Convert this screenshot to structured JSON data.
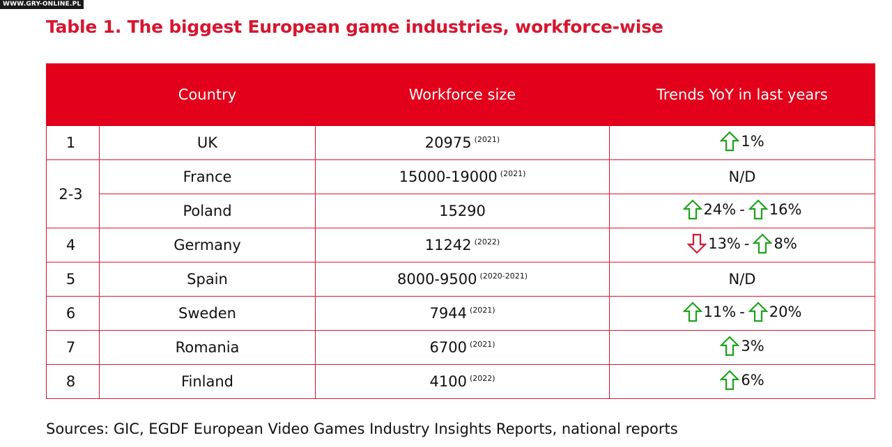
{
  "watermark": "WWW.GRY-ONLINE.PL",
  "title": "Table 1. The biggest European game industries, workforce-wise",
  "table": {
    "headers": {
      "rank": "",
      "country": "Country",
      "workforce": "Workforce size",
      "trends": "Trends YoY in last years"
    },
    "rows": [
      {
        "rank": "1",
        "country": "UK",
        "workforce": "20975",
        "year": "(2021)",
        "t1_dir": "up",
        "t1": "1%"
      },
      {
        "rank": "2-3",
        "country": "France",
        "workforce": "15000-19000",
        "year": "(2021)",
        "nd": "N/D"
      },
      {
        "country": "Poland",
        "workforce": "15290",
        "year": "",
        "t1_dir": "up",
        "t1": "24%",
        "sep": "-",
        "t2_dir": "up",
        "t2": "16%"
      },
      {
        "rank": "4",
        "country": "Germany",
        "workforce": "11242",
        "year": "(2022)",
        "t1_dir": "down",
        "t1": "13%",
        "sep": "-",
        "t2_dir": "up",
        "t2": "8%"
      },
      {
        "rank": "5",
        "country": "Spain",
        "workforce": "8000-9500",
        "year": "(2020-2021)",
        "nd": "N/D"
      },
      {
        "rank": "6",
        "country": "Sweden",
        "workforce": "7944",
        "year": "(2021)",
        "t1_dir": "up",
        "t1": "11%",
        "sep": "-",
        "t2_dir": "up",
        "t2": "20%"
      },
      {
        "rank": "7",
        "country": "Romania",
        "workforce": "6700",
        "year": "(2021)",
        "t1_dir": "up",
        "t1": "3%"
      },
      {
        "rank": "8",
        "country": "Finland",
        "workforce": "4100",
        "year": "(2022)",
        "t1_dir": "up",
        "t1": "6%"
      }
    ]
  },
  "sources": "Sources: GIC, EGDF European Video Games Industry Insights Reports, national reports",
  "colors": {
    "accent": "#e2001a",
    "title": "#d7162f",
    "up": "#1aa31a",
    "down": "#d7162f"
  },
  "icons": {
    "up": "arrow-up-icon",
    "down": "arrow-down-icon"
  }
}
